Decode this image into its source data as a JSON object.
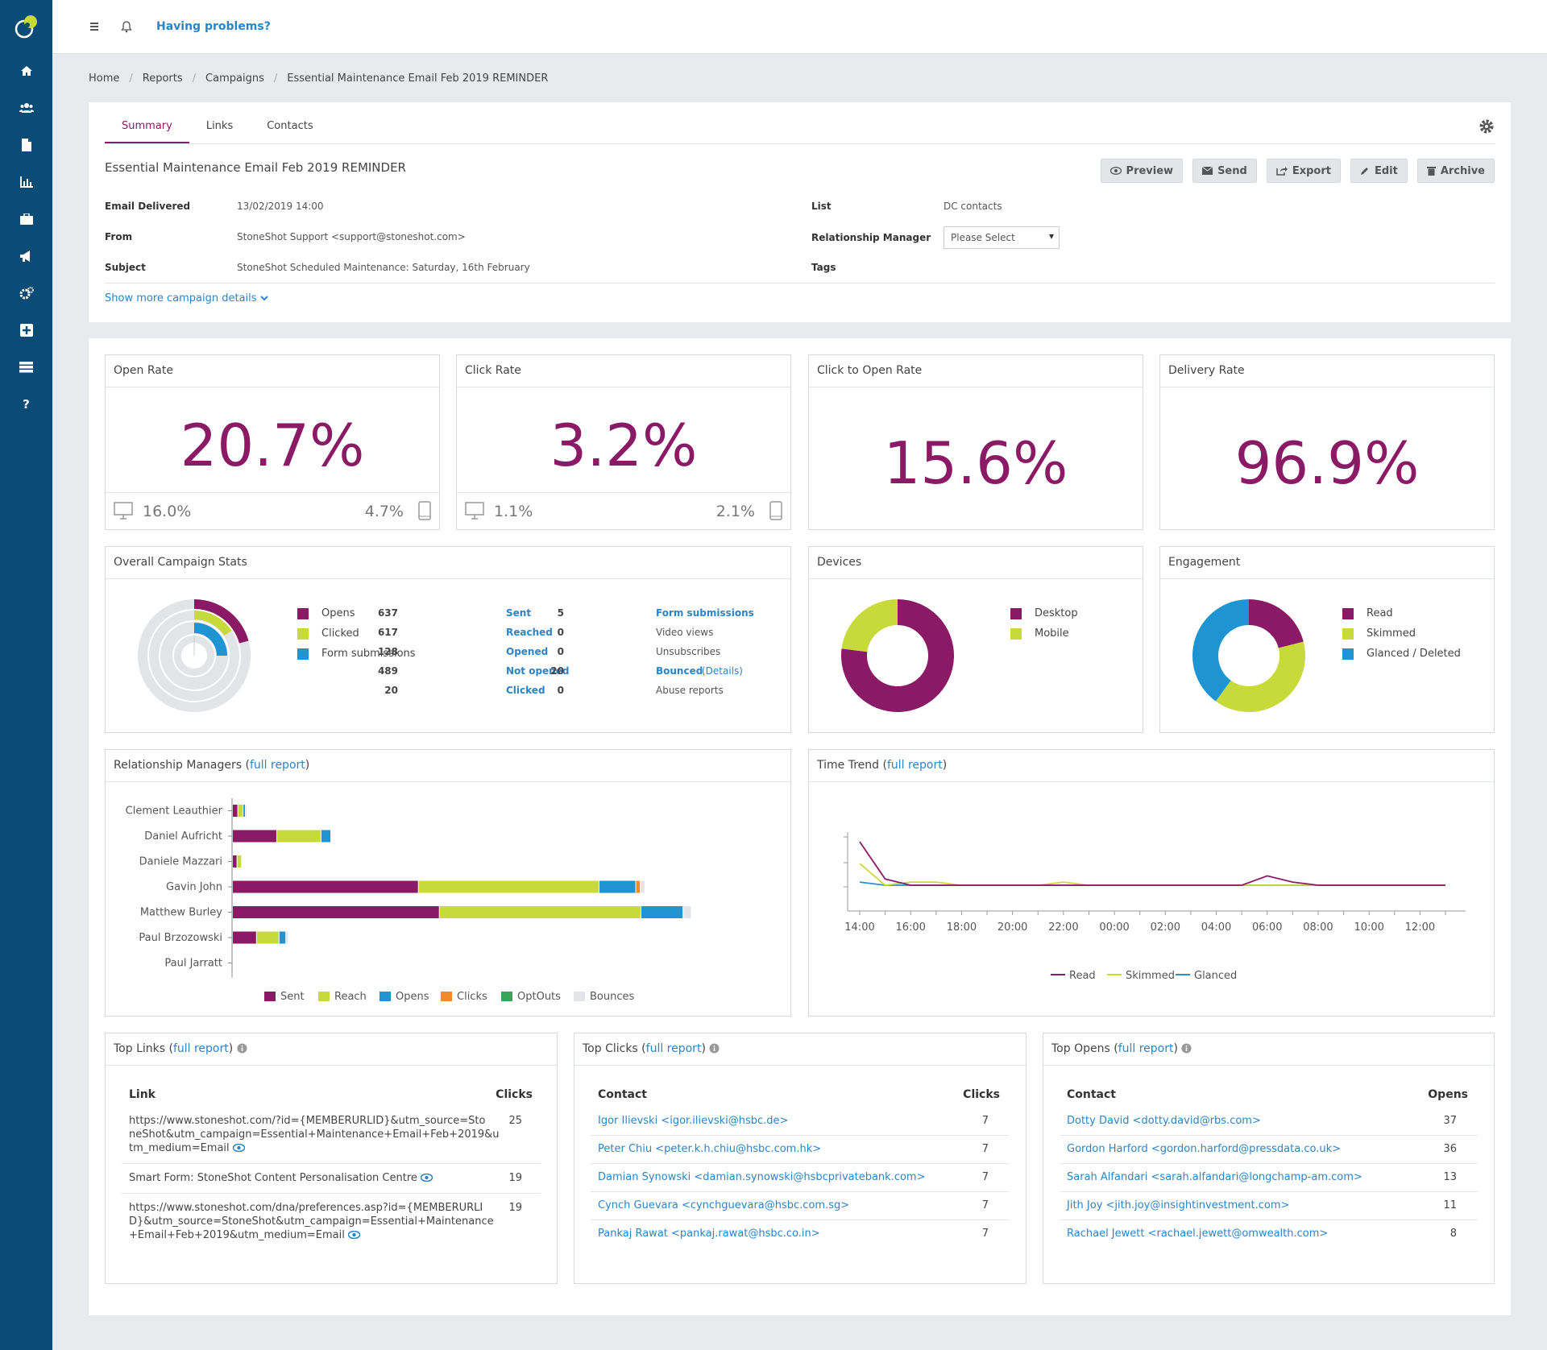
{
  "topbar": {
    "help_label": "Having problems?"
  },
  "breadcrumb": [
    "Home",
    "Reports",
    "Campaigns",
    "Essential Maintenance Email Feb 2019 REMINDER"
  ],
  "tabs": [
    "Summary",
    "Links",
    "Contacts"
  ],
  "campaign": {
    "title": "Essential Maintenance Email Feb 2019 REMINDER",
    "buttons": {
      "preview": "Preview",
      "send": "Send",
      "export": "Export",
      "edit": "Edit",
      "archive": "Archive"
    },
    "email_delivered_label": "Email Delivered",
    "email_delivered": "13/02/2019 14:00",
    "from_label": "From",
    "from": "StoneShot Support <support@stoneshot.com>",
    "subject_label": "Subject",
    "subject": "StoneShot Scheduled Maintenance: Saturday, 16th February",
    "list_label": "List",
    "list": "DC contacts",
    "rm_label": "Relationship Manager",
    "rm_select": "Please Select",
    "tags_label": "Tags",
    "show_more": "Show more campaign details"
  },
  "rates": {
    "open": {
      "title": "Open Rate",
      "value": "20.7%",
      "desktop": "16.0%",
      "mobile": "4.7%"
    },
    "click": {
      "title": "Click Rate",
      "value": "3.2%",
      "desktop": "1.1%",
      "mobile": "2.1%"
    },
    "cto": {
      "title": "Click to Open Rate",
      "value": "15.6%"
    },
    "delivery": {
      "title": "Delivery Rate",
      "value": "96.9%"
    }
  },
  "overall": {
    "title": "Overall Campaign Stats",
    "legend": [
      "Opens",
      "Clicked",
      "Form submissions"
    ],
    "col1": [
      {
        "n": "637",
        "label": "Sent"
      },
      {
        "n": "617",
        "label": "Reached"
      },
      {
        "n": "128",
        "label": "Opened"
      },
      {
        "n": "489",
        "label": "Not opened"
      },
      {
        "n": "20",
        "label": "Clicked"
      }
    ],
    "col2": [
      {
        "n": "5",
        "label": "Form submissions",
        "link": true
      },
      {
        "n": "0",
        "label": "Video views"
      },
      {
        "n": "0",
        "label": "Unsubscribes"
      },
      {
        "n": "20",
        "label": "Bounced",
        "link": true,
        "extra": "(Details)"
      },
      {
        "n": "0",
        "label": "Abuse reports"
      }
    ]
  },
  "devices": {
    "title": "Devices",
    "legend": [
      "Desktop",
      "Mobile"
    ]
  },
  "engagement": {
    "title": "Engagement",
    "legend": [
      "Read",
      "Skimmed",
      "Glanced / Deleted"
    ]
  },
  "rm_panel": {
    "title": "Relationship Managers (",
    "link": "full report",
    "legend": [
      "Sent",
      "Reach",
      "Opens",
      "Clicks",
      "OptOuts",
      "Bounces"
    ]
  },
  "trend_panel": {
    "title": "Time Trend (",
    "link": "full report"
  },
  "top_links": {
    "title": "Top Links (",
    "link": "full report",
    "col1": "Link",
    "col2": "Clicks",
    "rows": [
      {
        "text": "https://www.stoneshot.com/?id={MEMBERURLID}&utm_source=StoneShot&utm_campaign=Essential+Maintenance+Email+Feb+2019&utm_medium=Email",
        "lines": [
          "https://www.stoneshot.com/?id={MEMBERURLID}&utm_source=Sto",
          "neShot&utm_campaign=Essential+Maintenance+Email+Feb+2019&u",
          "tm_medium=Email"
        ],
        "n": "25"
      },
      {
        "text": "Smart Form: StoneShot Content Personalisation Centre",
        "lines": [
          "Smart Form: StoneShot Content Personalisation Centre"
        ],
        "n": "19"
      },
      {
        "text": "https://www.stoneshot.com/dna/preferences.asp?id={MEMBERURLID}&utm_source=StoneShot&utm_campaign=Essential+Maintenance+Email+Feb+2019&utm_medium=Email",
        "lines": [
          "https://www.stoneshot.com/dna/preferences.asp?id={MEMBERURLI",
          "D}&utm_source=StoneShot&utm_campaign=Essential+Maintenance",
          "+Email+Feb+2019&utm_medium=Email"
        ],
        "n": "19"
      }
    ]
  },
  "top_clicks": {
    "title": "Top Clicks (",
    "link": "full report",
    "col1": "Contact",
    "col2": "Clicks",
    "rows": [
      {
        "c": "Igor Ilievski <igor.ilievski@hsbc.de>",
        "n": "7"
      },
      {
        "c": "Peter Chiu <peter.k.h.chiu@hsbc.com.hk>",
        "n": "7"
      },
      {
        "c": "Damian Synowski <damian.synowski@hsbcprivatebank.com>",
        "n": "7"
      },
      {
        "c": "Cynch Guevara <cynchguevara@hsbc.com.sg>",
        "n": "7"
      },
      {
        "c": "Pankaj Rawat <pankaj.rawat@hsbc.co.in>",
        "n": "7"
      }
    ]
  },
  "top_opens": {
    "title": "Top Opens (",
    "link": "full report",
    "col1": "Contact",
    "col2": "Opens",
    "rows": [
      {
        "c": "Dotty David <dotty.david@rbs.com>",
        "n": "37"
      },
      {
        "c": "Gordon Harford <gordon.harford@pressdata.co.uk>",
        "n": "36"
      },
      {
        "c": "Sarah Alfandari <sarah.alfandari@longchamp-am.com>",
        "n": "13"
      },
      {
        "c": "Jith Joy <jith.joy@insightinvestment.com>",
        "n": "11"
      },
      {
        "c": "Rachael Jewett <rachael.jewett@omwealth.com>",
        "n": "8"
      }
    ]
  },
  "colors": {
    "purple": "#8b1a66",
    "lime": "#c8d93a",
    "blue": "#1e94d2",
    "orange": "#f08a2a",
    "green": "#3aa55a",
    "grey": "#e2e4e7"
  },
  "chart_data": [
    {
      "type": "pie",
      "title": "Overall Campaign Stats",
      "series": [
        {
          "name": "Opens",
          "values": [
            128,
            489
          ],
          "note": "of reached"
        },
        {
          "name": "Clicked",
          "values": [
            20,
            108
          ]
        },
        {
          "name": "Form submissions",
          "values": [
            5,
            15
          ]
        }
      ]
    },
    {
      "type": "pie",
      "title": "Devices",
      "categories": [
        "Desktop",
        "Mobile"
      ],
      "values": [
        77,
        23
      ]
    },
    {
      "type": "pie",
      "title": "Engagement",
      "categories": [
        "Read",
        "Skimmed",
        "Glanced / Deleted"
      ],
      "values": [
        21,
        39,
        40
      ]
    },
    {
      "type": "bar",
      "title": "Relationship Managers",
      "orientation": "horizontal",
      "stacked": true,
      "categories": [
        "Clement Leauthier",
        "Daniel Aufricht",
        "Daniele Mazzari",
        "Gavin John",
        "Matthew Burley",
        "Paul Brzozowski",
        "Paul Jarratt"
      ],
      "series": [
        {
          "name": "Sent",
          "values": [
            6,
            58,
            5,
            247,
            275,
            31,
            0
          ]
        },
        {
          "name": "Reach",
          "values": [
            6,
            58,
            5,
            240,
            268,
            29,
            0
          ]
        },
        {
          "name": "Opens",
          "values": [
            2,
            12,
            0,
            48,
            55,
            8,
            0
          ]
        },
        {
          "name": "Clicks",
          "values": [
            0,
            0,
            0,
            5,
            0,
            0,
            0
          ]
        },
        {
          "name": "OptOuts",
          "values": [
            0,
            0,
            0,
            0,
            0,
            0,
            0
          ]
        },
        {
          "name": "Bounces",
          "values": [
            1,
            0,
            0,
            5,
            10,
            2,
            0
          ]
        }
      ]
    },
    {
      "type": "line",
      "title": "Time Trend",
      "x": [
        "14:00",
        "15:00",
        "16:00",
        "17:00",
        "18:00",
        "19:00",
        "20:00",
        "21:00",
        "22:00",
        "23:00",
        "00:00",
        "01:00",
        "02:00",
        "03:00",
        "04:00",
        "05:00",
        "06:00",
        "07:00",
        "08:00",
        "09:00",
        "10:00",
        "11:00",
        "12:00",
        "13:00"
      ],
      "xticks": [
        "14:00",
        "16:00",
        "18:00",
        "20:00",
        "22:00",
        "00:00",
        "02:00",
        "04:00",
        "06:00",
        "08:00",
        "10:00",
        "12:00"
      ],
      "series": [
        {
          "name": "Read",
          "values": [
            14,
            2,
            0,
            0,
            0,
            0,
            0,
            0,
            0,
            0,
            0,
            0,
            0,
            0,
            0,
            0,
            3,
            1,
            0,
            0,
            0,
            0,
            0,
            0
          ]
        },
        {
          "name": "Skimmed",
          "values": [
            7,
            0,
            1,
            1,
            0,
            0,
            0,
            0,
            1,
            0,
            0,
            0,
            0,
            0,
            0,
            0,
            0,
            0,
            0,
            0,
            0,
            0,
            0,
            0
          ]
        },
        {
          "name": "Glanced",
          "values": [
            1,
            0,
            0,
            0,
            0,
            0,
            0,
            0,
            0,
            0,
            0,
            0,
            0,
            0,
            0,
            0,
            0,
            0,
            0,
            0,
            0,
            0,
            0,
            0
          ]
        }
      ]
    }
  ]
}
